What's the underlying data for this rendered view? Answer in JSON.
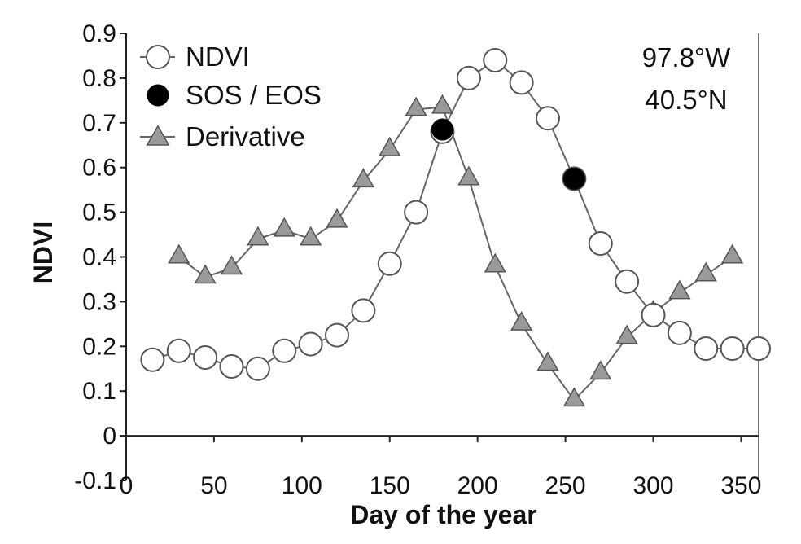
{
  "chart_data": {
    "type": "line",
    "title": "",
    "xlabel": "Day of the year",
    "ylabel": "NDVI",
    "xlim": [
      0,
      360
    ],
    "ylim": [
      -0.1,
      0.9
    ],
    "x_ticks": [
      "0",
      "50",
      "100",
      "150",
      "200",
      "250",
      "300",
      "350"
    ],
    "x_tick_values": [
      0,
      50,
      100,
      150,
      200,
      250,
      300,
      350
    ],
    "y_ticks": [
      "-0.1",
      "0",
      "0.1",
      "0.2",
      "0.3",
      "0.4",
      "0.5",
      "0.6",
      "0.7",
      "0.8",
      "0.9"
    ],
    "y_tick_values": [
      -0.1,
      0,
      0.1,
      0.2,
      0.3,
      0.4,
      0.5,
      0.6,
      0.7,
      0.8,
      0.9
    ],
    "grid": false,
    "legend_position": "top-left",
    "annotations": [
      "97.8°W",
      "40.5°N"
    ],
    "series": [
      {
        "name": "NDVI",
        "marker": "open-circle",
        "x": [
          15,
          30,
          45,
          60,
          75,
          90,
          105,
          120,
          135,
          150,
          165,
          180,
          195,
          210,
          225,
          240,
          255,
          270,
          285,
          300,
          315,
          330,
          345,
          360
        ],
        "y": [
          0.17,
          0.19,
          0.175,
          0.155,
          0.15,
          0.19,
          0.205,
          0.225,
          0.28,
          0.385,
          0.5,
          0.68,
          0.8,
          0.84,
          0.79,
          0.71,
          0.575,
          0.43,
          0.345,
          0.27,
          0.23,
          0.195,
          0.195,
          0.195
        ]
      },
      {
        "name": "SOS / EOS",
        "marker": "filled-circle",
        "x": [
          180,
          255
        ],
        "y": [
          0.685,
          0.575
        ]
      },
      {
        "name": "Derivative",
        "marker": "triangle",
        "x": [
          30,
          45,
          60,
          75,
          90,
          105,
          120,
          135,
          150,
          165,
          180,
          195,
          210,
          225,
          240,
          255,
          270,
          285,
          300,
          315,
          330,
          345
        ],
        "y": [
          0.4,
          0.355,
          0.375,
          0.44,
          0.46,
          0.44,
          0.48,
          0.57,
          0.64,
          0.73,
          0.735,
          0.575,
          0.38,
          0.25,
          0.16,
          0.08,
          0.14,
          0.22,
          0.275,
          0.32,
          0.36,
          0.4
        ]
      }
    ]
  }
}
